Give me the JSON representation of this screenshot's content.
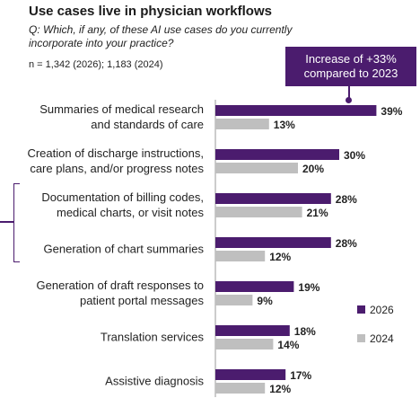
{
  "title": "Use cases live in physician workflows",
  "question": "Q: Which, if any, of these AI use cases do you currently incorporate into your practice?",
  "sample": "n = 1,342 (2026); 1,183 (2024)",
  "callout": {
    "line1": "Increase of +33%",
    "line2": "compared to 2023"
  },
  "chart_data": {
    "type": "bar",
    "orientation": "horizontal",
    "categories": [
      [
        "Summaries of medical research",
        "and standards of care"
      ],
      [
        "Creation of discharge instructions,",
        "care plans, and/or progress notes"
      ],
      [
        "Documentation of billing codes,",
        "medical charts, or visit notes"
      ],
      [
        "Generation of chart summaries"
      ],
      [
        "Generation of draft responses to",
        "patient portal messages"
      ],
      [
        "Translation services"
      ],
      [
        "Assistive diagnosis"
      ]
    ],
    "series": [
      {
        "name": "2026",
        "color": "#4b1c6e",
        "values": [
          39,
          30,
          28,
          28,
          19,
          18,
          17
        ]
      },
      {
        "name": "2024",
        "color": "#bfbfbf",
        "values": [
          13,
          20,
          21,
          12,
          9,
          14,
          12
        ]
      }
    ],
    "value_suffix": "%",
    "xlim": [
      0,
      50
    ],
    "legend_position": "right"
  }
}
